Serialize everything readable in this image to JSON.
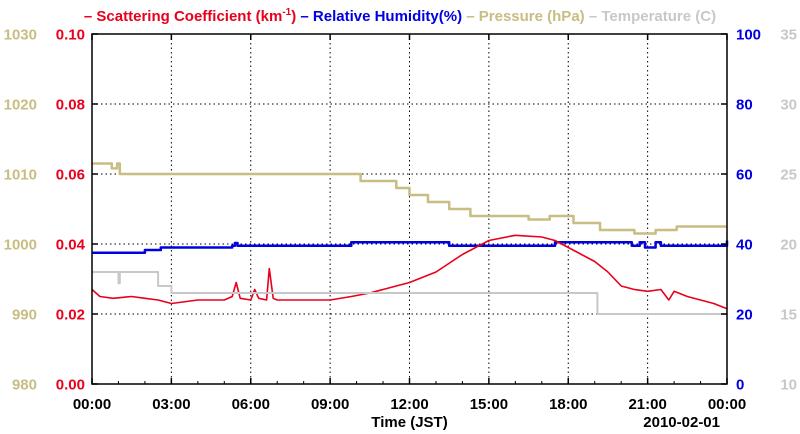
{
  "chart_data": {
    "type": "line",
    "legend": [
      {
        "key": "scattering",
        "prefix": "– ",
        "text": "Scattering Coefficient (km",
        "sup": "-1",
        "suffix": ")",
        "color": "#e8001c"
      },
      {
        "key": "humidity",
        "prefix": "– ",
        "text": "Relative Humidity(%)",
        "color": "#0000e0"
      },
      {
        "key": "pressure",
        "prefix": "– ",
        "text": "Pressure (hPa)",
        "color": "#c8bd82"
      },
      {
        "key": "temperature",
        "prefix": "– ",
        "text": "Temperature (C)",
        "color": "#c8c8c8"
      }
    ],
    "xlabel": "Time (JST)",
    "date_label": "2010-02-01",
    "xlim": [
      0,
      24
    ],
    "x_ticks": [
      "00:00",
      "03:00",
      "06:00",
      "09:00",
      "12:00",
      "15:00",
      "18:00",
      "21:00",
      "00:00"
    ],
    "axes": {
      "pressure": {
        "ylim": [
          980,
          1030
        ],
        "ticks": [
          "980",
          "990",
          "1000",
          "1010",
          "1020",
          "1030"
        ],
        "color": "#c8bd82"
      },
      "scattering": {
        "ylim": [
          0,
          0.1
        ],
        "ticks": [
          "0.00",
          "0.02",
          "0.04",
          "0.06",
          "0.08",
          "0.10"
        ],
        "color": "#e8001c"
      },
      "humidity": {
        "ylim": [
          0,
          100
        ],
        "ticks": [
          "0",
          "20",
          "40",
          "60",
          "80",
          "100"
        ],
        "color": "#0000e0"
      },
      "temperature": {
        "ylim": [
          10,
          35
        ],
        "ticks": [
          "10",
          "15",
          "20",
          "25",
          "30",
          "35"
        ],
        "color": "#c8c8c8"
      }
    },
    "series": [
      {
        "name": "Pressure",
        "axis": "pressure",
        "color": "#c8bd82",
        "step": true,
        "x": [
          0,
          0.75,
          0.95,
          1.05,
          9.8,
          10.15,
          11.5,
          12.0,
          12.7,
          13.5,
          14.3,
          16.5,
          17.3,
          18.2,
          19.2,
          20.5,
          21.3,
          22.1,
          24
        ],
        "y": [
          1011.5,
          1010.8,
          1011.5,
          1010,
          1010,
          1009,
          1008,
          1007,
          1006,
          1005,
          1004,
          1003.5,
          1004,
          1003,
          1002,
          1001.5,
          1002,
          1002.5,
          1002.5
        ]
      },
      {
        "name": "Relative Humidity",
        "axis": "humidity",
        "color": "#0000e0",
        "step": true,
        "x": [
          0,
          2.0,
          2.6,
          5.3,
          5.4,
          5.5,
          9.0,
          9.8,
          13.5,
          17.5,
          20.2,
          20.4,
          20.7,
          20.9,
          21.3,
          21.5,
          24
        ],
        "y": [
          37.5,
          38.3,
          39,
          39.5,
          40.3,
          39.5,
          39.5,
          40.5,
          39.5,
          40.5,
          40.5,
          39.5,
          40.5,
          39,
          40.5,
          39.5,
          41
        ]
      },
      {
        "name": "Scattering Coefficient",
        "axis": "scattering",
        "color": "#e8001c",
        "step": false,
        "x": [
          0,
          0.3,
          0.8,
          1.5,
          2.0,
          2.5,
          3.0,
          4.0,
          5.0,
          5.3,
          5.45,
          5.6,
          6.0,
          6.15,
          6.3,
          6.6,
          6.7,
          6.85,
          7.0,
          8.0,
          9.0,
          9.8,
          10.5,
          11.0,
          12.0,
          13.0,
          14.0,
          15.0,
          16.0,
          17.0,
          17.5,
          18.0,
          18.5,
          19.0,
          19.5,
          20.0,
          20.5,
          21.0,
          21.5,
          21.8,
          22.0,
          22.5,
          23.0,
          23.5,
          24.0
        ],
        "y": [
          0.027,
          0.025,
          0.0245,
          0.025,
          0.0245,
          0.024,
          0.023,
          0.024,
          0.024,
          0.025,
          0.029,
          0.0245,
          0.024,
          0.027,
          0.0245,
          0.024,
          0.033,
          0.0245,
          0.024,
          0.024,
          0.024,
          0.025,
          0.026,
          0.027,
          0.029,
          0.032,
          0.037,
          0.041,
          0.0425,
          0.042,
          0.041,
          0.039,
          0.037,
          0.035,
          0.032,
          0.028,
          0.027,
          0.0265,
          0.027,
          0.024,
          0.0265,
          0.025,
          0.024,
          0.023,
          0.0215
        ]
      },
      {
        "name": "Temperature",
        "axis": "temperature",
        "color": "#c8c8c8",
        "step": true,
        "x": [
          0,
          1.0,
          1.05,
          2.5,
          3.0,
          19.0,
          19.1,
          24
        ],
        "y": [
          18,
          17.2,
          18,
          17,
          16.5,
          16.5,
          15,
          15
        ]
      }
    ]
  }
}
